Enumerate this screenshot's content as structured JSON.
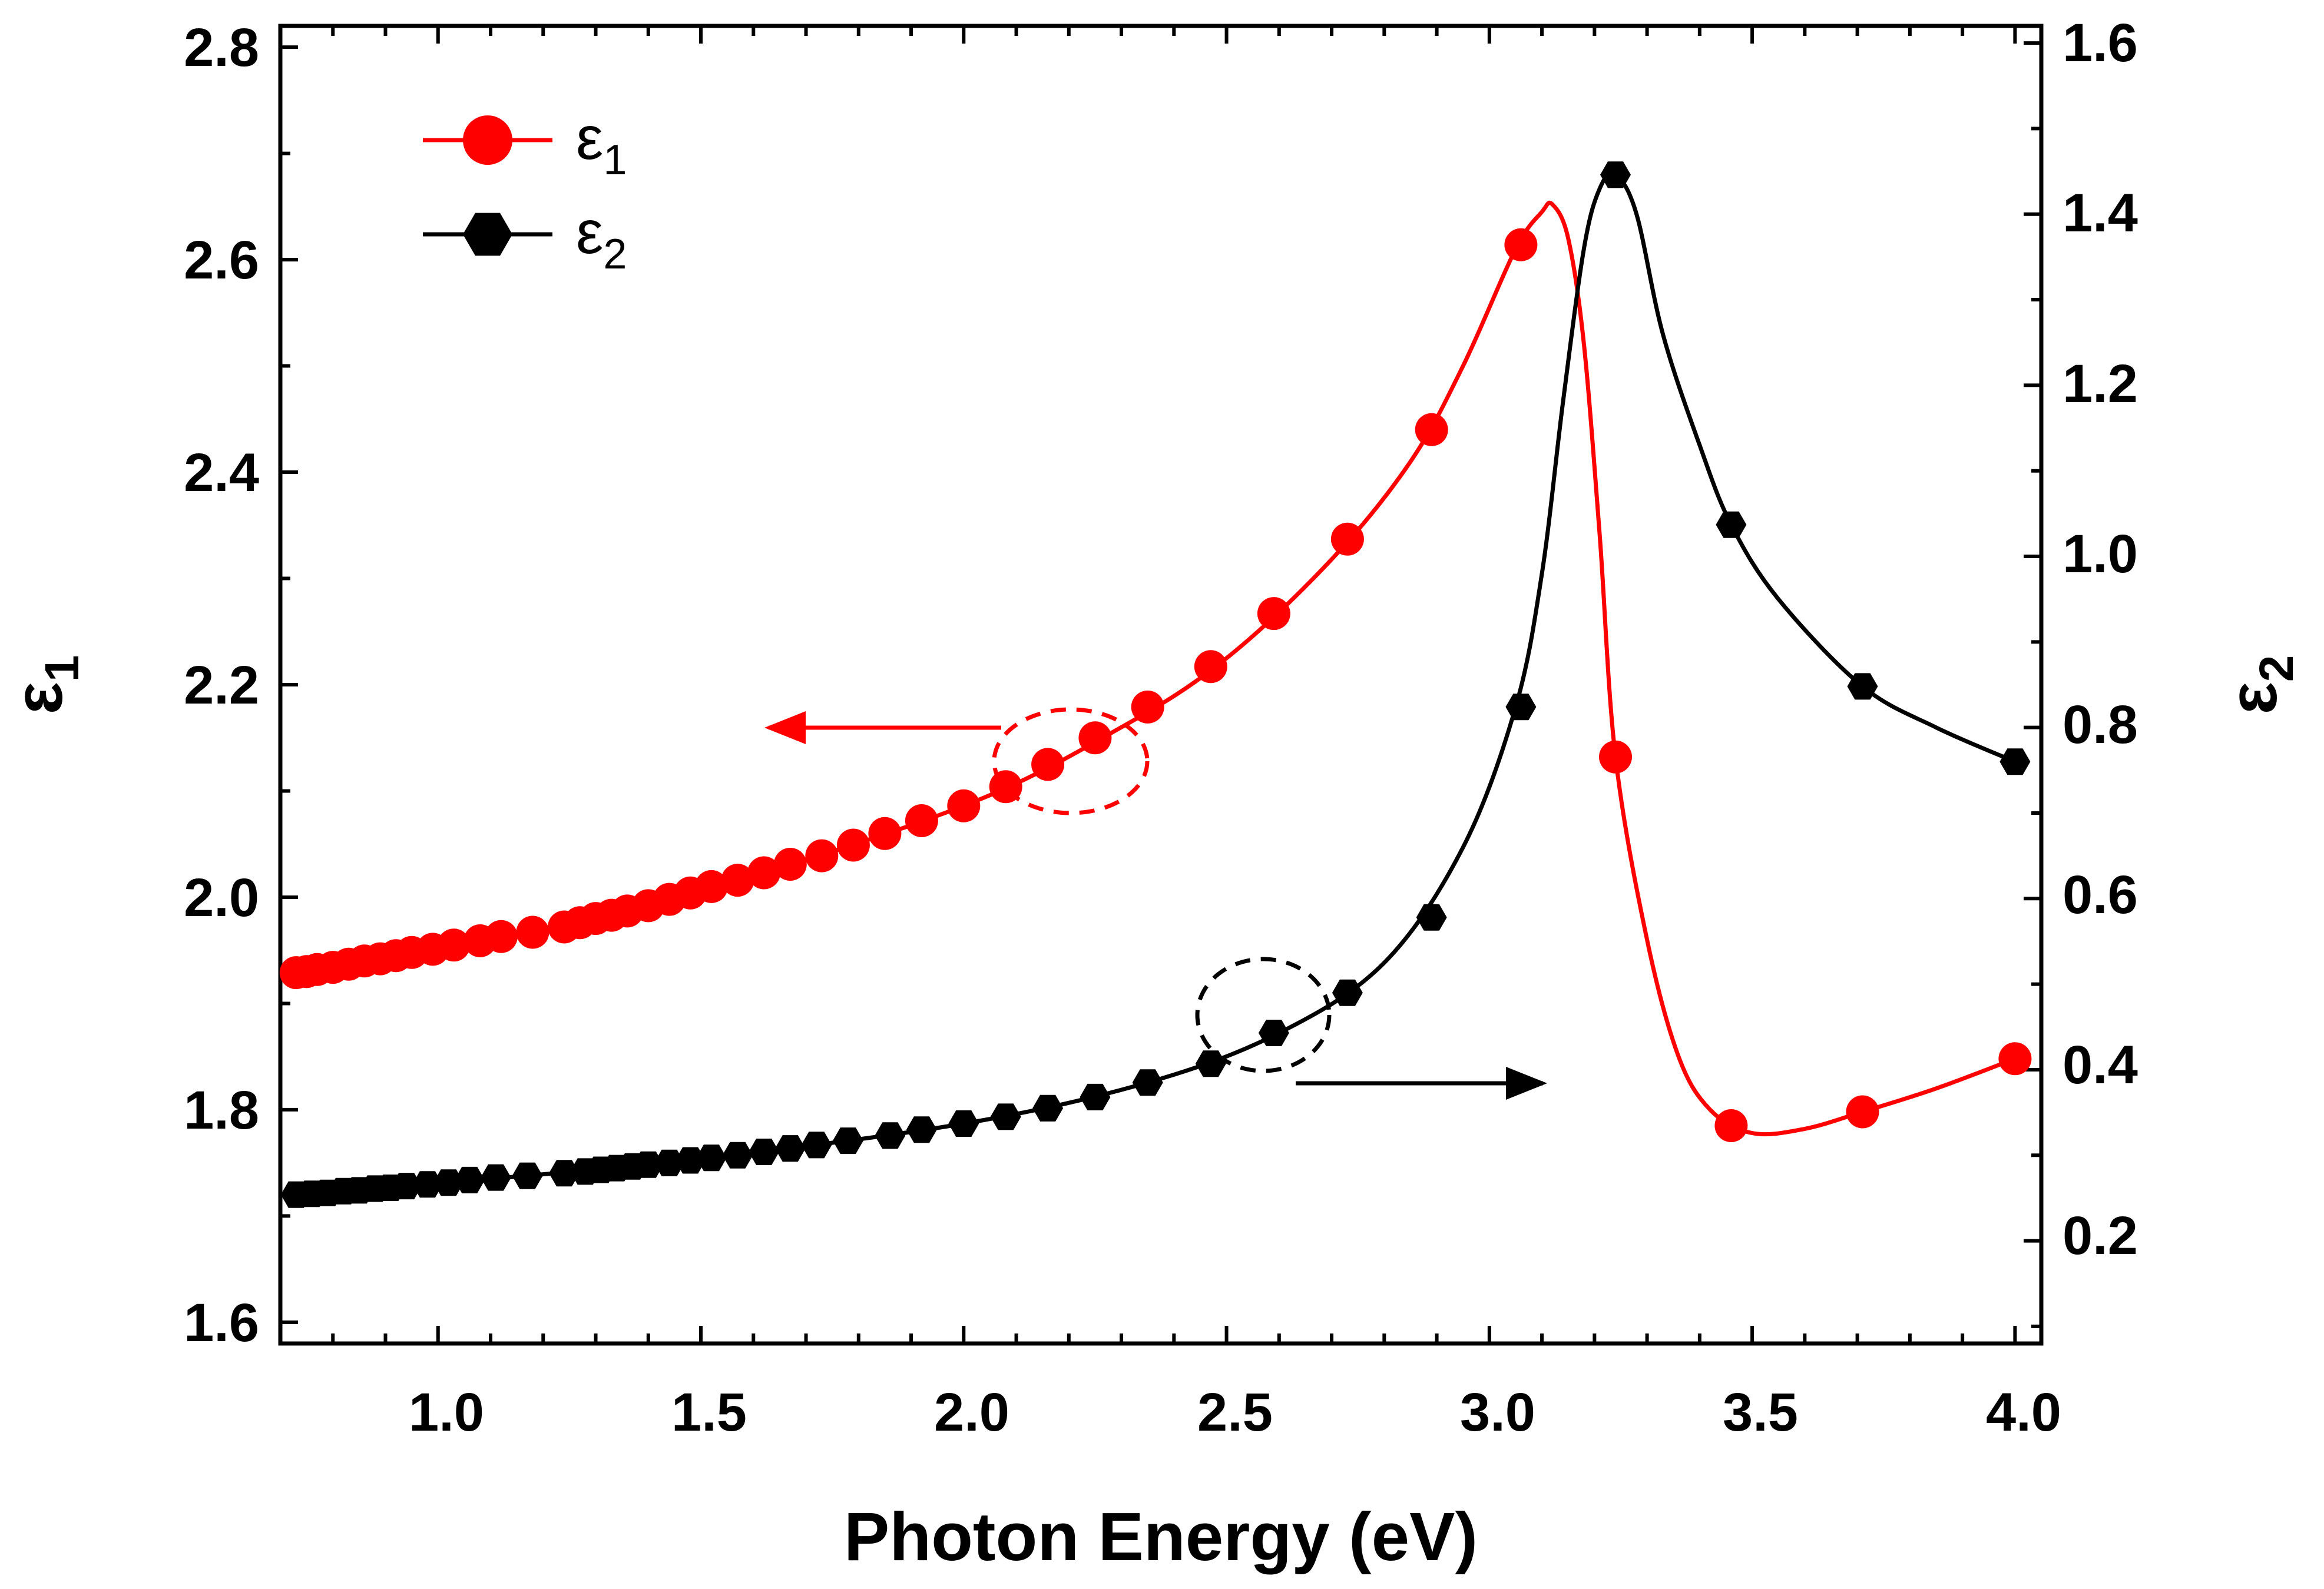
{
  "chart_data": {
    "type": "line",
    "title": "",
    "xlabel": "Photon Energy (eV)",
    "ylabel_left": "ε1",
    "ylabel_right": "ε2",
    "xlim": [
      0.7,
      4.05
    ],
    "ylim_left": [
      1.58,
      2.82
    ],
    "ylim_right": [
      0.08,
      1.62
    ],
    "x_ticks": [
      "1.0",
      "1.5",
      "2.0",
      "2.5",
      "3.0",
      "3.5",
      "4.0"
    ],
    "y_left_ticks": [
      "1.6",
      "1.8",
      "2.0",
      "2.2",
      "2.4",
      "2.6",
      "2.8"
    ],
    "y_right_ticks": [
      "0.2",
      "0.4",
      "0.6",
      "0.8",
      "1.0",
      "1.2",
      "1.4",
      "1.6"
    ],
    "legend": {
      "position": "top-left",
      "entries": [
        {
          "symbol": "ε",
          "subscript": "1"
        },
        {
          "symbol": "ε",
          "subscript": "2"
        }
      ]
    },
    "series": [
      {
        "name": "ε1",
        "axis": "left",
        "color": "#ff0000",
        "marker": "circle",
        "x": [
          0.73,
          0.75,
          0.77,
          0.8,
          0.83,
          0.86,
          0.89,
          0.92,
          0.95,
          0.99,
          1.03,
          1.08,
          1.12,
          1.18,
          1.24,
          1.27,
          1.3,
          1.33,
          1.36,
          1.4,
          1.44,
          1.48,
          1.52,
          1.57,
          1.62,
          1.67,
          1.73,
          1.79,
          1.85,
          1.92,
          2.0,
          2.08,
          2.16,
          2.25,
          2.35,
          2.47,
          2.59,
          2.73,
          2.89,
          3.06,
          3.24,
          3.46,
          3.71,
          4.0
        ],
        "values": [
          1.929,
          1.93,
          1.932,
          1.934,
          1.937,
          1.94,
          1.942,
          1.945,
          1.948,
          1.951,
          1.955,
          1.959,
          1.963,
          1.967,
          1.972,
          1.976,
          1.98,
          1.983,
          1.987,
          1.992,
          1.998,
          2.004,
          2.01,
          2.016,
          2.023,
          2.031,
          2.039,
          2.049,
          2.06,
          2.072,
          2.086,
          2.104,
          2.125,
          2.15,
          2.179,
          2.217,
          2.267,
          2.337,
          2.44,
          2.614,
          2.132,
          1.785,
          1.798,
          1.848
        ],
        "curve_x": [
          0.73,
          1.0,
          1.5,
          2.0,
          2.3,
          2.5,
          2.7,
          2.85,
          2.95,
          3.05,
          3.1,
          3.12,
          3.15,
          3.18,
          3.21,
          3.24,
          3.3,
          3.36,
          3.42,
          3.5,
          3.6,
          3.71,
          3.85,
          4.0
        ],
        "curve_values": [
          1.929,
          1.948,
          2.006,
          2.086,
          2.16,
          2.225,
          2.318,
          2.41,
          2.5,
          2.61,
          2.645,
          2.652,
          2.62,
          2.52,
          2.34,
          2.132,
          1.96,
          1.85,
          1.8,
          1.778,
          1.782,
          1.798,
          1.82,
          1.848
        ]
      },
      {
        "name": "ε2",
        "axis": "right",
        "color": "#000000",
        "marker": "hexagon",
        "x": [
          0.73,
          0.76,
          0.79,
          0.82,
          0.85,
          0.88,
          0.91,
          0.94,
          0.98,
          1.02,
          1.06,
          1.11,
          1.17,
          1.24,
          1.28,
          1.31,
          1.34,
          1.37,
          1.4,
          1.44,
          1.48,
          1.52,
          1.57,
          1.62,
          1.67,
          1.72,
          1.78,
          1.86,
          1.92,
          2.0,
          2.08,
          2.16,
          2.25,
          2.35,
          2.47,
          2.59,
          2.73,
          2.89,
          3.06,
          3.24,
          3.46,
          3.71,
          4.0
        ],
        "values": [
          0.254,
          0.255,
          0.256,
          0.258,
          0.259,
          0.261,
          0.262,
          0.264,
          0.266,
          0.268,
          0.271,
          0.274,
          0.276,
          0.279,
          0.281,
          0.283,
          0.285,
          0.287,
          0.289,
          0.291,
          0.294,
          0.297,
          0.3,
          0.304,
          0.308,
          0.312,
          0.317,
          0.323,
          0.33,
          0.337,
          0.345,
          0.355,
          0.368,
          0.385,
          0.407,
          0.443,
          0.49,
          0.578,
          0.824,
          1.446,
          1.037,
          0.848,
          0.76
        ],
        "curve_x": [
          0.73,
          1.0,
          1.5,
          2.0,
          2.35,
          2.6,
          2.8,
          2.95,
          3.05,
          3.1,
          3.14,
          3.18,
          3.21,
          3.24,
          3.28,
          3.33,
          3.4,
          3.46,
          3.55,
          3.71,
          3.85,
          4.0
        ],
        "curve_values": [
          0.254,
          0.267,
          0.296,
          0.337,
          0.385,
          0.443,
          0.525,
          0.66,
          0.824,
          0.98,
          1.18,
          1.36,
          1.43,
          1.446,
          1.4,
          1.26,
          1.13,
          1.037,
          0.95,
          0.848,
          0.8,
          0.76
        ]
      }
    ],
    "annotations": [
      {
        "type": "dashed-ellipse",
        "color": "#ff0000",
        "series": "ε1",
        "indicates": "left axis"
      },
      {
        "type": "dashed-ellipse",
        "color": "#000000",
        "series": "ε2",
        "indicates": "right axis"
      }
    ]
  }
}
